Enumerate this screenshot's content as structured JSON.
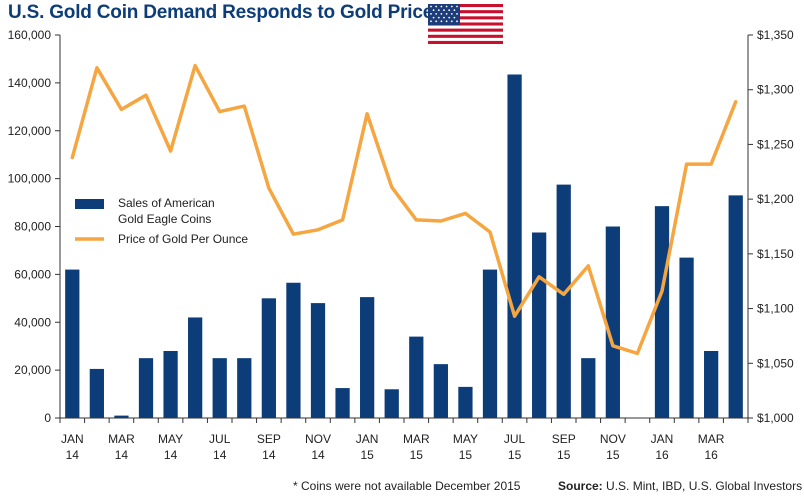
{
  "title": "U.S. Gold Coin Demand Responds to Gold Prices",
  "footnote": "* Coins were not available December 2015",
  "source_label": "Source:",
  "source_text": "U.S. Mint, IBD, U.S. Global Investors",
  "flag_icon": "us-flag-icon",
  "colors": {
    "bar": "#0c3d79",
    "line": "#f5a641",
    "title": "#0c3d79"
  },
  "chart_data": {
    "type": "bar",
    "title": "U.S. Gold Coin Demand Responds to Gold Prices",
    "months": [
      "Jan 14",
      "Feb 14",
      "Mar 14",
      "Apr 14",
      "May 14",
      "Jun 14",
      "Jul 14",
      "Aug 14",
      "Sep 14",
      "Oct 14",
      "Nov 14",
      "Dec 14",
      "Jan 15",
      "Feb 15",
      "Mar 15",
      "Apr 15",
      "May 15",
      "Jun 15",
      "Jul 15",
      "Aug 15",
      "Sep 15",
      "Oct 15",
      "Nov 15",
      "Dec 15",
      "Jan 16",
      "Feb 16",
      "Mar 16",
      "Apr 16"
    ],
    "x_tick_labels": [
      {
        "month": "JAN",
        "year": "14",
        "index": 0
      },
      {
        "month": "MAR",
        "year": "14",
        "index": 2
      },
      {
        "month": "MAY",
        "year": "14",
        "index": 4
      },
      {
        "month": "JUL",
        "year": "14",
        "index": 6
      },
      {
        "month": "SEP",
        "year": "14",
        "index": 8
      },
      {
        "month": "NOV",
        "year": "14",
        "index": 10
      },
      {
        "month": "JAN",
        "year": "15",
        "index": 12
      },
      {
        "month": "MAR",
        "year": "15",
        "index": 14
      },
      {
        "month": "MAY",
        "year": "15",
        "index": 16
      },
      {
        "month": "JUL",
        "year": "15",
        "index": 18
      },
      {
        "month": "SEP",
        "year": "15",
        "index": 20
      },
      {
        "month": "NOV",
        "year": "15",
        "index": 22
      },
      {
        "month": "JAN",
        "year": "16",
        "index": 24
      },
      {
        "month": "MAR",
        "year": "16",
        "index": 26
      }
    ],
    "series": [
      {
        "name": "Sales of American Gold Eagle Coins",
        "type": "bar",
        "axis": "left",
        "values": [
          62000,
          20500,
          1000,
          25000,
          28000,
          42000,
          25000,
          25000,
          50000,
          56500,
          48000,
          12500,
          50500,
          12000,
          34000,
          22500,
          13000,
          62000,
          143500,
          77500,
          97500,
          25000,
          80000,
          null,
          88500,
          67000,
          28000,
          93000
        ]
      },
      {
        "name": "Price of Gold Per Ounce",
        "type": "line",
        "axis": "right",
        "values": [
          1238,
          1320,
          1282,
          1295,
          1244,
          1322,
          1280,
          1285,
          1210,
          1168,
          1172,
          1181,
          1278,
          1211,
          1181,
          1180,
          1187,
          1170,
          1093,
          1129,
          1113,
          1139,
          1066,
          1059,
          1116,
          1232,
          1232,
          1289
        ]
      }
    ],
    "left_axis": {
      "ylim": [
        0,
        160000
      ],
      "ticks": [
        "0",
        "20,000",
        "40,000",
        "60,000",
        "80,000",
        "100,000",
        "120,000",
        "140,000",
        "160,000"
      ]
    },
    "right_axis": {
      "ylim": [
        1000,
        1350
      ],
      "ticks": [
        "$1,000",
        "$1,050",
        "$1,100",
        "$1,150",
        "$1,200",
        "$1,250",
        "$1,300",
        "$1,350"
      ]
    },
    "legend": {
      "position": "left-middle",
      "bar_label_line1": "Sales of American",
      "bar_label_line2": "Gold Eagle Coins",
      "line_label": "Price of Gold Per Ounce"
    },
    "grid": false
  }
}
